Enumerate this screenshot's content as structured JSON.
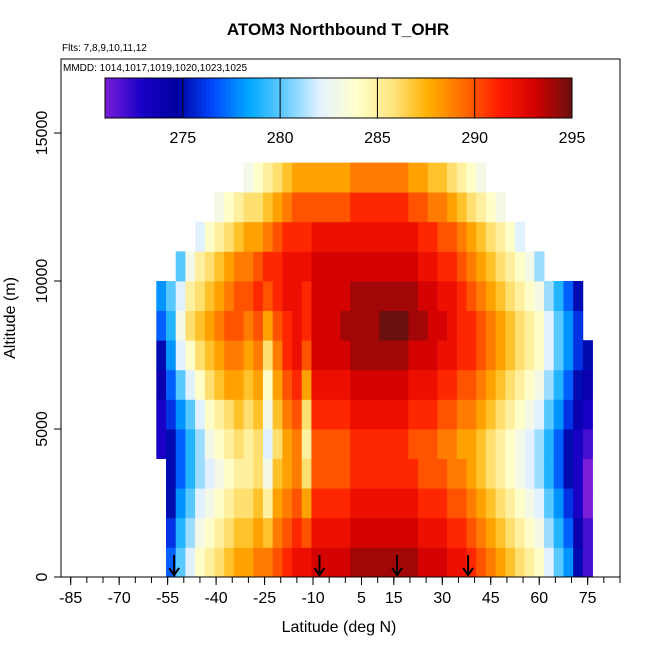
{
  "chart_data": {
    "type": "heatmap",
    "title": "ATOM3 Northbound T_OHR",
    "flights_text": "Flts: 7,8,9,10,11,12",
    "dates_text": "MMDD: 1014,1017,1019,1020,1023,1025",
    "xlabel": "Latitude (deg N)",
    "ylabel": "Altitude (m)",
    "xlim": [
      -88,
      85
    ],
    "ylim": [
      0,
      17500
    ],
    "x_ticks": [
      -85,
      -70,
      -55,
      -40,
      -25,
      -10,
      5,
      15,
      30,
      45,
      60,
      75
    ],
    "x_tick_labels": [
      "-85",
      "-70",
      "-55",
      "-40",
      "-25",
      "-10",
      "5",
      "15",
      "30",
      "45",
      "60",
      "75"
    ],
    "y_ticks": [
      0,
      5000,
      10000,
      15000
    ],
    "y_tick_labels": [
      "0",
      "5000",
      "10000",
      "15000"
    ],
    "colorbar": {
      "min": 271,
      "max": 295,
      "ticks": [
        275,
        280,
        285,
        290,
        295
      ],
      "tick_labels": [
        "275",
        "280",
        "285",
        "290",
        "295"
      ],
      "colors": [
        "#7a1fd6",
        "#1a00c8",
        "#0000a0",
        "#0048ff",
        "#00a8ff",
        "#66ccff",
        "#e6f3ff",
        "#ffffcc",
        "#ffe680",
        "#ffb000",
        "#ff6a00",
        "#ff1a00",
        "#d00000",
        "#6a1010"
      ]
    },
    "arrows_lat": [
      -53,
      -8,
      16,
      38
    ],
    "profiles": {
      "lat": [
        -57,
        -54,
        -51,
        -48,
        -45,
        -42,
        -39,
        -36,
        -33,
        -30,
        -27,
        -24,
        -21,
        -18,
        -15,
        -12,
        -9,
        -6,
        -3,
        0,
        3,
        6,
        9,
        12,
        15,
        18,
        21,
        24,
        27,
        30,
        33,
        36,
        39,
        42,
        45,
        48,
        51,
        54,
        57,
        60,
        63,
        66,
        69,
        72,
        75
      ],
      "alt": [
        0,
        1000,
        2000,
        3000,
        4000,
        5000,
        6000,
        7000,
        8000,
        9000,
        10000,
        11000,
        12000,
        13000
      ],
      "temp": [
        [
          null,
          null,
          null,
          null,
          273,
          273,
          274,
          275,
          277,
          278,
          null,
          null,
          null,
          null
        ],
        [
          277,
          276,
          275,
          275,
          275,
          276,
          277,
          278,
          279,
          280,
          null,
          null,
          null,
          null
        ],
        [
          280,
          279,
          278,
          277,
          277,
          278,
          280,
          282,
          283,
          282,
          280,
          null,
          null,
          null
        ],
        [
          282,
          281,
          280,
          279,
          279,
          280,
          282,
          284,
          286,
          285,
          283,
          null,
          null,
          null
        ],
        [
          284,
          283,
          282,
          281,
          281,
          282,
          284,
          286,
          287,
          286,
          285,
          282,
          null,
          null
        ],
        [
          285,
          284,
          283,
          282,
          283,
          284,
          286,
          287,
          288,
          287,
          286,
          284,
          null,
          null
        ],
        [
          286,
          285,
          284,
          283,
          284,
          285,
          287,
          288,
          289,
          288,
          287,
          285,
          283,
          null
        ],
        [
          287,
          286,
          285,
          284,
          285,
          286,
          288,
          289,
          290,
          289,
          288,
          286,
          284,
          null
        ],
        [
          288,
          287,
          286,
          285,
          286,
          287,
          288,
          289,
          290,
          290,
          289,
          287,
          285,
          null
        ],
        [
          288,
          287,
          286,
          285,
          285,
          286,
          287,
          288,
          289,
          290,
          289,
          288,
          286,
          283
        ],
        [
          289,
          288,
          287,
          286,
          286,
          287,
          288,
          289,
          290,
          291,
          290,
          288,
          286,
          284
        ],
        [
          289,
          287,
          285,
          283,
          282,
          283,
          284,
          286,
          288,
          290,
          291,
          289,
          287,
          285
        ],
        [
          290,
          289,
          288,
          287,
          286,
          287,
          288,
          289,
          290,
          291,
          291,
          290,
          288,
          286
        ],
        [
          291,
          290,
          289,
          288,
          288,
          289,
          290,
          291,
          291,
          292,
          292,
          291,
          289,
          287
        ],
        [
          292,
          291,
          290,
          289,
          289,
          290,
          291,
          292,
          292,
          292,
          292,
          291,
          290,
          288
        ],
        [
          292,
          290,
          288,
          286,
          285,
          286,
          288,
          290,
          291,
          291,
          292,
          291,
          290,
          288
        ],
        [
          293,
          292,
          291,
          290,
          290,
          291,
          292,
          293,
          293,
          293,
          293,
          292,
          290,
          288
        ],
        [
          293,
          292,
          291,
          290,
          290,
          291,
          292,
          293,
          293,
          293,
          293,
          292,
          290,
          288
        ],
        [
          293,
          292,
          291,
          290,
          290,
          291,
          292,
          293,
          293,
          293,
          293,
          292,
          290,
          288
        ],
        [
          293,
          292,
          291,
          290,
          290,
          291,
          292,
          293,
          294,
          293,
          293,
          292,
          290,
          288
        ],
        [
          294,
          293,
          292,
          291,
          291,
          292,
          293,
          294,
          294,
          294,
          293,
          292,
          291,
          289
        ],
        [
          294,
          293,
          292,
          291,
          291,
          292,
          293,
          294,
          294,
          294,
          293,
          292,
          291,
          289
        ],
        [
          294,
          293,
          292,
          291,
          291,
          292,
          293,
          294,
          294,
          294,
          293,
          292,
          291,
          289
        ],
        [
          294,
          293,
          292,
          291,
          291,
          292,
          293,
          294,
          295,
          294,
          293,
          292,
          291,
          289
        ],
        [
          294,
          293,
          292,
          291,
          291,
          292,
          293,
          294,
          295,
          294,
          293,
          292,
          291,
          289
        ],
        [
          294,
          293,
          292,
          291,
          291,
          292,
          293,
          294,
          295,
          294,
          293,
          292,
          291,
          289
        ],
        [
          294,
          293,
          292,
          291,
          290,
          291,
          292,
          293,
          294,
          294,
          293,
          292,
          290,
          288
        ],
        [
          293,
          292,
          291,
          290,
          290,
          291,
          292,
          293,
          294,
          293,
          292,
          291,
          290,
          288
        ],
        [
          293,
          292,
          291,
          290,
          290,
          291,
          292,
          293,
          293,
          293,
          292,
          291,
          289,
          287
        ],
        [
          293,
          292,
          291,
          290,
          289,
          290,
          291,
          292,
          293,
          292,
          291,
          290,
          289,
          287
        ],
        [
          292,
          291,
          290,
          289,
          289,
          290,
          291,
          292,
          292,
          292,
          291,
          290,
          288,
          286
        ],
        [
          292,
          291,
          290,
          289,
          288,
          289,
          290,
          291,
          291,
          291,
          290,
          289,
          287,
          285
        ],
        [
          291,
          290,
          289,
          288,
          288,
          289,
          290,
          291,
          291,
          290,
          289,
          288,
          286,
          284
        ],
        [
          290,
          289,
          288,
          287,
          287,
          288,
          289,
          290,
          290,
          289,
          288,
          287,
          285,
          283
        ],
        [
          289,
          288,
          287,
          286,
          286,
          287,
          288,
          289,
          289,
          288,
          287,
          286,
          284,
          null
        ],
        [
          288,
          287,
          286,
          285,
          285,
          286,
          287,
          288,
          288,
          287,
          286,
          285,
          283,
          null
        ],
        [
          287,
          286,
          285,
          284,
          284,
          285,
          286,
          287,
          287,
          286,
          285,
          284,
          null,
          null
        ],
        [
          286,
          285,
          284,
          283,
          283,
          284,
          285,
          286,
          286,
          285,
          284,
          282,
          null,
          null
        ],
        [
          285,
          284,
          283,
          282,
          282,
          283,
          284,
          285,
          285,
          284,
          283,
          null,
          null,
          null
        ],
        [
          284,
          283,
          282,
          281,
          281,
          282,
          283,
          284,
          284,
          283,
          281,
          null,
          null,
          null
        ],
        [
          282,
          281,
          280,
          279,
          279,
          280,
          281,
          282,
          282,
          281,
          null,
          null,
          null,
          null
        ],
        [
          280,
          279,
          278,
          277,
          277,
          278,
          279,
          280,
          280,
          279,
          null,
          null,
          null,
          null
        ],
        [
          278,
          277,
          276,
          275,
          275,
          276,
          277,
          278,
          278,
          277,
          null,
          null,
          null,
          null
        ],
        [
          275,
          274,
          273,
          273,
          273,
          274,
          275,
          276,
          276,
          275,
          null,
          null,
          null,
          null
        ],
        [
          272,
          272,
          271,
          271,
          272,
          273,
          274,
          275,
          null,
          null,
          null,
          null,
          null,
          null
        ]
      ]
    }
  }
}
